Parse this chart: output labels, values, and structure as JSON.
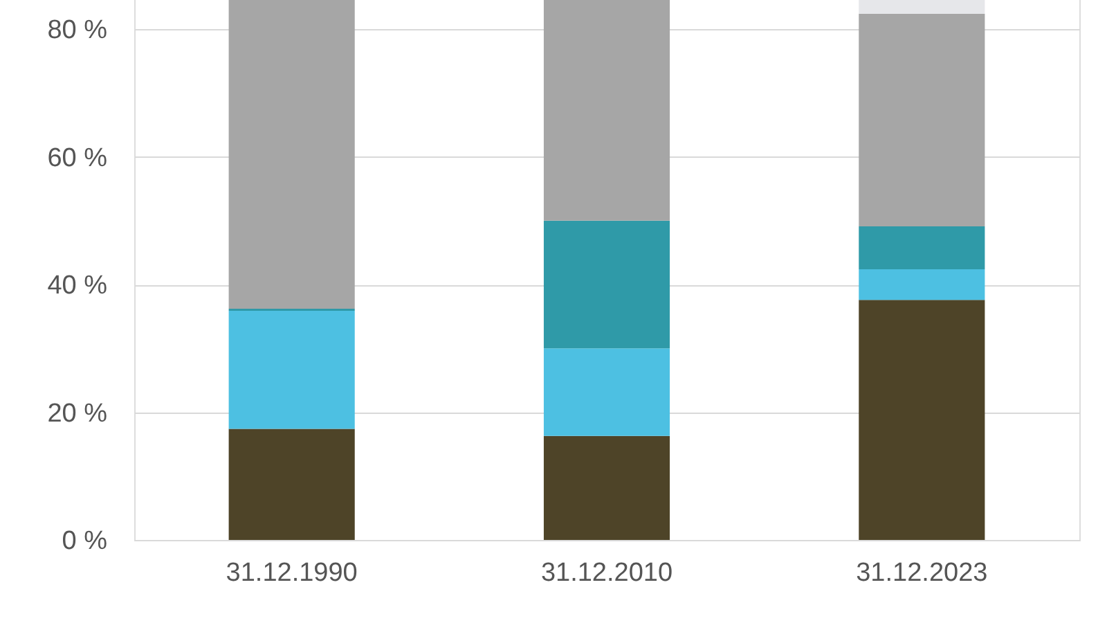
{
  "chart_data": {
    "type": "bar",
    "stacked": true,
    "categories": [
      "31.12.1990",
      "31.12.2010",
      "31.12.2023"
    ],
    "series": [
      {
        "color": "#4e4428",
        "values": [
          17.4,
          16.3,
          37.6
        ]
      },
      {
        "color": "#4dc0e2",
        "values": [
          18.5,
          13.7,
          4.8
        ]
      },
      {
        "color": "#2f9aa8",
        "values": [
          0.3,
          20.0,
          6.7
        ]
      },
      {
        "color": "#a6a6a6",
        "values": [
          48.8,
          34.6,
          33.3
        ]
      },
      {
        "color": "#e6e7ea",
        "values": [
          null,
          null,
          2.6
        ]
      }
    ],
    "ylim": [
      0,
      85
    ],
    "yticks": [
      {
        "value": 0,
        "label": "0 %"
      },
      {
        "value": 20,
        "label": "20 %"
      },
      {
        "value": 40,
        "label": "40 %"
      },
      {
        "value": 60,
        "label": "60 %"
      },
      {
        "value": 80,
        "label": "80 %"
      }
    ],
    "grid": "y",
    "legend": false
  }
}
